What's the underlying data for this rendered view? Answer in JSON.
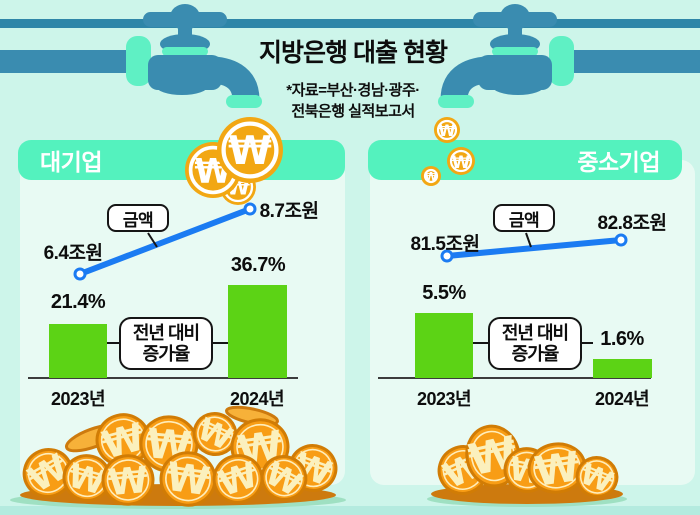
{
  "header": {
    "title": "지방은행 대출 현황",
    "source_note_line1": "*자료=부산·경남·광주·",
    "source_note_line2": "전북은행 실적보고서"
  },
  "decor": {
    "coin_symbol": "₩"
  },
  "colors": {
    "background": "#cdf5ea",
    "panel_body": "#e8faf3",
    "panel_header": "#54f2be",
    "pipe_teal": "#3a8cb0",
    "mint_accent": "#5ff0c4",
    "line_blue": "#1b7bf2",
    "bar_green": "#5cd315",
    "coin_gold_top": "#f2a713",
    "coin_orange_pile": "#f89d15"
  },
  "panels": [
    {
      "header": "대기업",
      "amount_callout": "금액",
      "growth_callout_line1": "전년 대비",
      "growth_callout_line2": "증가율",
      "start_amount": "6.4조원",
      "end_amount": "8.7조원",
      "bars": [
        {
          "year": "2023년",
          "value": "21.4%"
        },
        {
          "year": "2024년",
          "value": "36.7%"
        }
      ]
    },
    {
      "header": "중소기업",
      "amount_callout": "금액",
      "growth_callout_line1": "전년 대비",
      "growth_callout_line2": "증가율",
      "start_amount": "81.5조원",
      "end_amount": "82.8조원",
      "bars": [
        {
          "year": "2023년",
          "value": "5.5%"
        },
        {
          "year": "2024년",
          "value": "1.6%"
        }
      ]
    }
  ],
  "chart_data": [
    {
      "type": "line+bar",
      "title": "대기업",
      "categories": [
        "2023년",
        "2024년"
      ],
      "series": [
        {
          "name": "금액",
          "type": "line",
          "unit": "조원",
          "values": [
            6.4,
            8.7
          ]
        },
        {
          "name": "전년 대비 증가율",
          "type": "bar",
          "unit": "%",
          "values": [
            21.4,
            36.7
          ]
        }
      ],
      "grid": false,
      "legend_position": "inline-callout"
    },
    {
      "type": "line+bar",
      "title": "중소기업",
      "categories": [
        "2023년",
        "2024년"
      ],
      "series": [
        {
          "name": "금액",
          "type": "line",
          "unit": "조원",
          "values": [
            81.5,
            82.8
          ]
        },
        {
          "name": "전년 대비 증가율",
          "type": "bar",
          "unit": "%",
          "values": [
            5.5,
            1.6
          ]
        }
      ],
      "grid": false,
      "legend_position": "inline-callout"
    }
  ]
}
